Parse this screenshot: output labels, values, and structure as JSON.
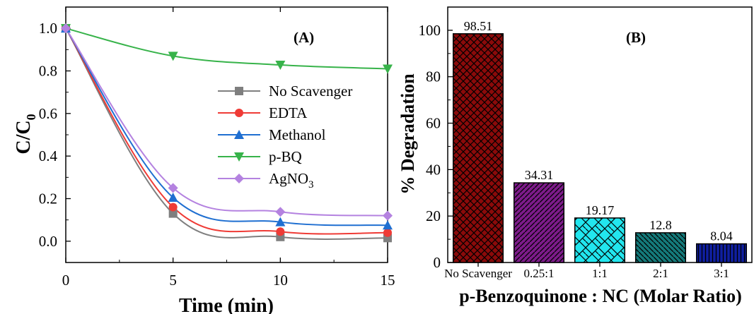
{
  "chart_data": [
    {
      "type": "line",
      "panel_label": "(A)",
      "xlabel": "Time (min)",
      "ylabel": "C/C",
      "ylabel_sub": "0",
      "xlim": [
        0,
        15
      ],
      "ylim": [
        -0.1,
        1.1
      ],
      "x_ticks": [
        0,
        5,
        10,
        15
      ],
      "y_ticks": [
        0.0,
        0.2,
        0.4,
        0.6,
        0.8,
        1.0
      ],
      "x_tick_labels": [
        "0",
        "5",
        "10",
        "15"
      ],
      "y_tick_labels": [
        "0.0",
        "0.2",
        "0.4",
        "0.6",
        "0.8",
        "1.0"
      ],
      "legend_position": "center-right",
      "x": [
        0,
        5,
        10,
        15
      ],
      "series": [
        {
          "name": "No Scavenger",
          "sub": "",
          "values": [
            1.0,
            0.13,
            0.02,
            0.015
          ],
          "color": "#7f7f7f",
          "marker": "square"
        },
        {
          "name": "EDTA",
          "sub": "",
          "values": [
            1.0,
            0.16,
            0.045,
            0.04
          ],
          "color": "#ef3b36",
          "marker": "circle"
        },
        {
          "name": "Methanol",
          "sub": "",
          "values": [
            1.0,
            0.205,
            0.09,
            0.075
          ],
          "color": "#1f6fd1",
          "marker": "triangle-up"
        },
        {
          "name": "p-BQ",
          "sub": "",
          "values": [
            1.0,
            0.87,
            0.828,
            0.81
          ],
          "color": "#37b34a",
          "marker": "triangle-down"
        },
        {
          "name": "AgNO",
          "sub": "3",
          "values": [
            1.0,
            0.25,
            0.138,
            0.12
          ],
          "color": "#b482e0",
          "marker": "diamond"
        }
      ]
    },
    {
      "type": "bar",
      "panel_label": "(B)",
      "xlabel": "p-Benzoquinone : NC (Molar Ratio)",
      "ylabel": "% Degradation",
      "ylim": [
        0,
        110
      ],
      "y_ticks": [
        0,
        20,
        40,
        60,
        80,
        100
      ],
      "y_tick_labels": [
        "0",
        "20",
        "40",
        "60",
        "80",
        "100"
      ],
      "categories": [
        "No Scavenger",
        "0.25:1",
        "1:1",
        "2:1",
        "3:1"
      ],
      "values": [
        98.51,
        34.31,
        19.17,
        12.8,
        8.04
      ],
      "value_labels": [
        "98.51",
        "34.31",
        "19.17",
        "12.8",
        "8.04"
      ],
      "colors": [
        "#8b0a0a",
        "#7d1b8a",
        "#22e6ee",
        "#147a7a",
        "#0f1fa0"
      ],
      "patterns": [
        "crosshatch",
        "diag-forward",
        "brick",
        "diag-back",
        "vertical"
      ]
    }
  ]
}
